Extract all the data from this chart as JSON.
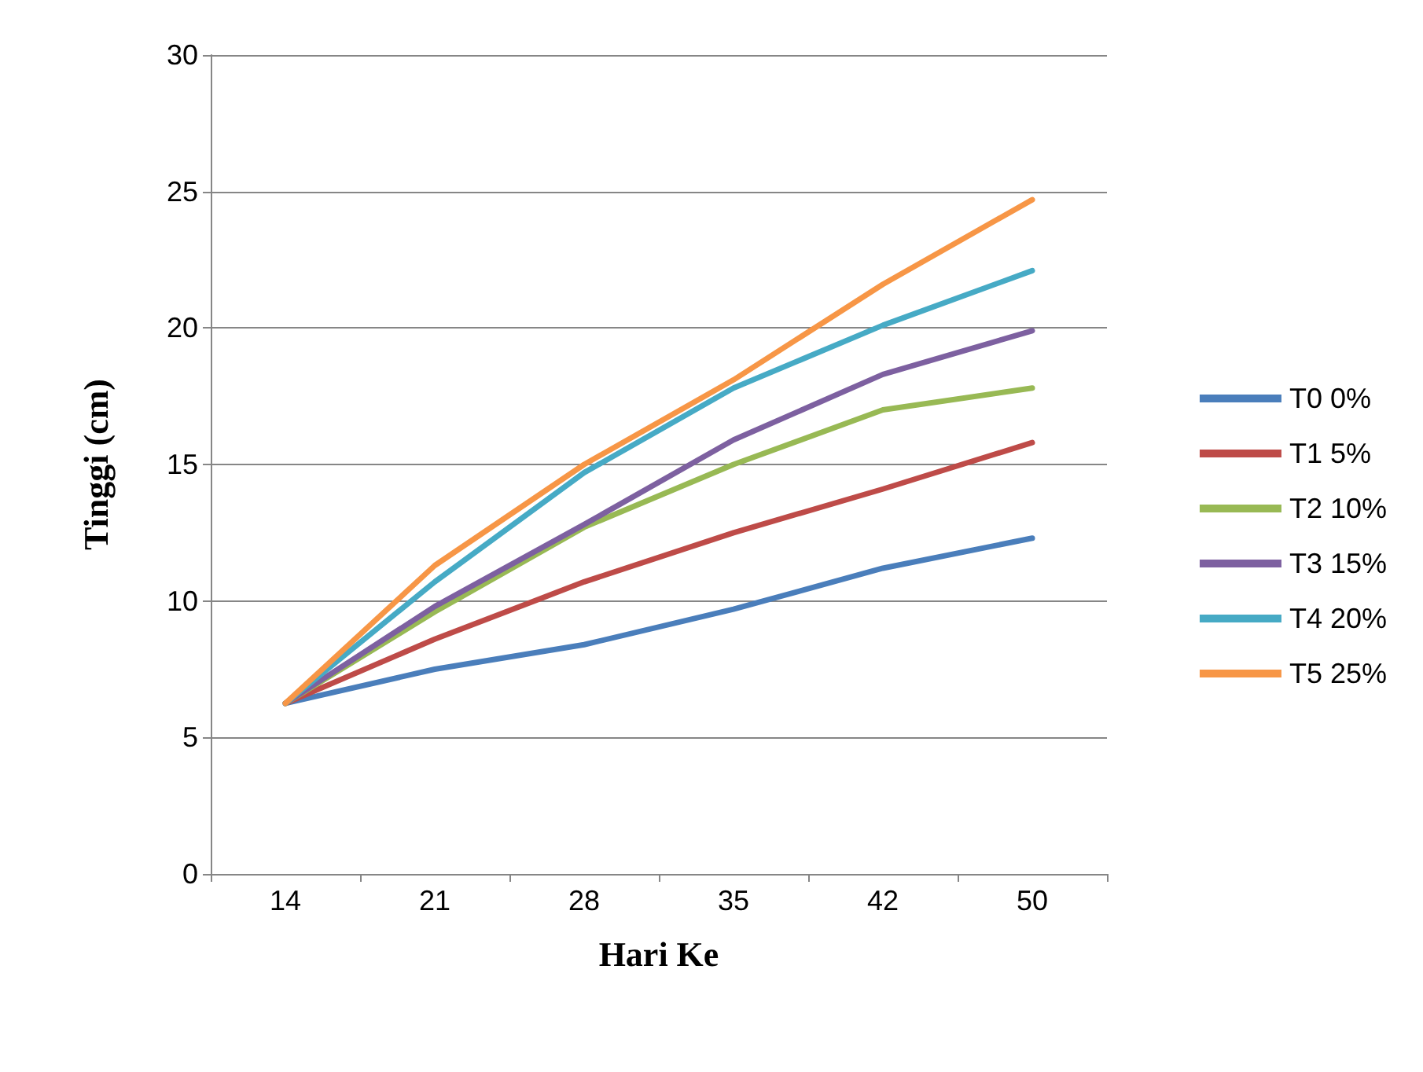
{
  "chart_data": {
    "type": "line",
    "xlabel": "Hari Ke",
    "ylabel": "Tinggi (cm)",
    "categories": [
      "14",
      "21",
      "28",
      "35",
      "42",
      "50"
    ],
    "ylim": [
      0,
      30
    ],
    "yticks": [
      0,
      5,
      10,
      15,
      20,
      25,
      30
    ],
    "grid": "y",
    "legend": "right",
    "marker": "none",
    "line_style": "solid",
    "series": [
      {
        "name": "T0 0%",
        "color": "#4a7ebb",
        "values": [
          6.25,
          7.5,
          8.4,
          9.7,
          11.2,
          12.3
        ]
      },
      {
        "name": "T1 5%",
        "color": "#be4b48",
        "values": [
          6.25,
          8.6,
          10.7,
          12.5,
          14.1,
          15.8
        ]
      },
      {
        "name": "T2 10%",
        "color": "#98b954",
        "values": [
          6.25,
          9.6,
          12.7,
          15.0,
          17.0,
          17.8
        ]
      },
      {
        "name": "T3 15%",
        "color": "#7d60a0",
        "values": [
          6.25,
          9.8,
          12.8,
          15.9,
          18.3,
          19.9
        ]
      },
      {
        "name": "T4 20%",
        "color": "#46aac5",
        "values": [
          6.25,
          10.7,
          14.7,
          17.8,
          20.1,
          22.1
        ]
      },
      {
        "name": "T5 25%",
        "color": "#f79646",
        "values": [
          6.25,
          11.3,
          15.0,
          18.1,
          21.6,
          24.7
        ]
      }
    ]
  }
}
